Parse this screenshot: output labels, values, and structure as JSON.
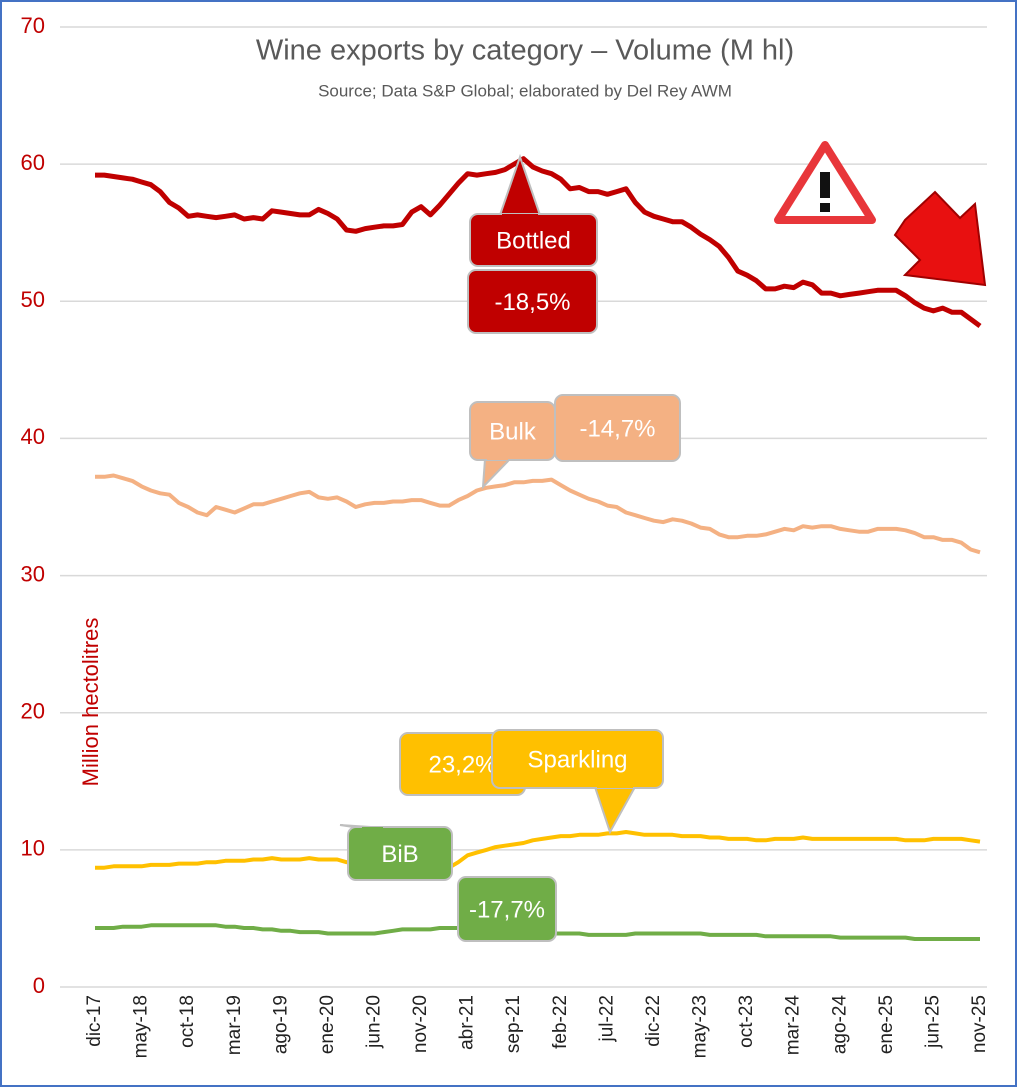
{
  "chart_data": {
    "type": "line",
    "title": "Wine exports by category – Volume (M hl)",
    "subtitle": "Source; Data S&P Global; elaborated by Del Rey AWM",
    "y_label": "Million hectolitres",
    "categories": [
      "dic-17",
      null,
      null,
      null,
      null,
      "may-18",
      null,
      null,
      null,
      null,
      "oct-18",
      null,
      null,
      null,
      null,
      "mar-19",
      null,
      null,
      null,
      null,
      "ago-19",
      null,
      null,
      null,
      null,
      "ene-20",
      null,
      null,
      null,
      null,
      "jun-20",
      null,
      null,
      null,
      null,
      "nov-20",
      null,
      null,
      null,
      null,
      "abr-21",
      null,
      null,
      null,
      null,
      "sep-21",
      null,
      null,
      null,
      null,
      "feb-22",
      null,
      null,
      null,
      null,
      "jul-22",
      null,
      null,
      null,
      null,
      "dic-22",
      null,
      null,
      null,
      null,
      "may-23",
      null,
      null,
      null,
      null,
      "oct-23",
      null,
      null,
      null,
      null,
      "mar-24",
      null,
      null,
      null,
      null,
      "ago-24",
      null,
      null,
      null,
      null,
      "ene-25",
      null,
      null,
      null,
      null,
      "jun-25",
      null,
      null,
      null,
      null,
      "nov-25"
    ],
    "series": [
      {
        "name": "Bottled",
        "color": "#c00000",
        "values": [
          59.2,
          59.2,
          59.1,
          59.0,
          58.9,
          58.7,
          58.5,
          58.0,
          57.2,
          56.8,
          56.2,
          56.3,
          56.2,
          56.1,
          56.2,
          56.3,
          56.0,
          56.1,
          56.0,
          56.6,
          56.5,
          56.4,
          56.3,
          56.3,
          56.7,
          56.4,
          56.0,
          55.2,
          55.1,
          55.3,
          55.4,
          55.5,
          55.5,
          55.6,
          56.5,
          56.9,
          56.3,
          57.0,
          57.8,
          58.6,
          59.3,
          59.2,
          59.3,
          59.4,
          59.6,
          60.0,
          60.4,
          59.8,
          59.5,
          59.3,
          58.9,
          58.2,
          58.3,
          58.0,
          58.0,
          57.8,
          58.0,
          58.2,
          57.2,
          56.5,
          56.2,
          56.0,
          55.8,
          55.8,
          55.4,
          54.9,
          54.5,
          54.0,
          53.2,
          52.2,
          51.9,
          51.5,
          50.9,
          50.9,
          51.1,
          51.0,
          51.4,
          51.2,
          50.6,
          50.6,
          50.4,
          50.5,
          50.6,
          50.7,
          50.8,
          50.8,
          50.8,
          50.4,
          49.9,
          49.5,
          49.3,
          49.5,
          49.2,
          49.2,
          48.7,
          48.2
        ]
      },
      {
        "name": "Bulk",
        "color": "#f4b183",
        "values": [
          37.2,
          37.2,
          37.3,
          37.1,
          36.9,
          36.5,
          36.2,
          36.0,
          35.9,
          35.3,
          35.0,
          34.6,
          34.4,
          35.0,
          34.8,
          34.6,
          34.9,
          35.2,
          35.2,
          35.4,
          35.6,
          35.8,
          36.0,
          36.1,
          35.7,
          35.6,
          35.7,
          35.4,
          35.0,
          35.2,
          35.3,
          35.3,
          35.4,
          35.4,
          35.5,
          35.5,
          35.3,
          35.1,
          35.1,
          35.5,
          35.8,
          36.2,
          36.4,
          36.5,
          36.6,
          36.8,
          36.8,
          36.9,
          36.9,
          37.0,
          36.6,
          36.2,
          35.9,
          35.6,
          35.4,
          35.1,
          35.0,
          34.6,
          34.4,
          34.2,
          34.0,
          33.9,
          34.1,
          34.0,
          33.8,
          33.5,
          33.4,
          33.0,
          32.8,
          32.8,
          32.9,
          32.9,
          33.0,
          33.2,
          33.4,
          33.3,
          33.6,
          33.5,
          33.6,
          33.6,
          33.4,
          33.3,
          33.2,
          33.2,
          33.4,
          33.4,
          33.4,
          33.3,
          33.1,
          32.8,
          32.8,
          32.6,
          32.6,
          32.4,
          31.9,
          31.7
        ]
      },
      {
        "name": "Sparkling",
        "color": "#ffc000",
        "values": [
          8.7,
          8.7,
          8.8,
          8.8,
          8.8,
          8.8,
          8.9,
          8.9,
          8.9,
          9.0,
          9.0,
          9.0,
          9.1,
          9.1,
          9.2,
          9.2,
          9.2,
          9.3,
          9.3,
          9.4,
          9.3,
          9.3,
          9.3,
          9.4,
          9.3,
          9.3,
          9.3,
          9.1,
          9.0,
          8.9,
          8.9,
          8.8,
          8.8,
          8.7,
          8.8,
          8.8,
          8.6,
          8.6,
          8.7,
          9.1,
          9.6,
          9.8,
          10.0,
          10.2,
          10.3,
          10.4,
          10.5,
          10.7,
          10.8,
          10.9,
          11.0,
          11.0,
          11.1,
          11.1,
          11.1,
          11.2,
          11.2,
          11.3,
          11.2,
          11.1,
          11.1,
          11.1,
          11.1,
          11.0,
          11.0,
          11.0,
          10.9,
          10.9,
          10.8,
          10.8,
          10.8,
          10.7,
          10.7,
          10.8,
          10.8,
          10.8,
          10.9,
          10.8,
          10.8,
          10.8,
          10.8,
          10.8,
          10.8,
          10.8,
          10.8,
          10.8,
          10.8,
          10.7,
          10.7,
          10.7,
          10.8,
          10.8,
          10.8,
          10.8,
          10.7,
          10.6
        ]
      },
      {
        "name": "BiB",
        "color": "#70ad47",
        "values": [
          4.3,
          4.3,
          4.3,
          4.4,
          4.4,
          4.4,
          4.5,
          4.5,
          4.5,
          4.5,
          4.5,
          4.5,
          4.5,
          4.5,
          4.4,
          4.4,
          4.3,
          4.3,
          4.2,
          4.2,
          4.1,
          4.1,
          4.0,
          4.0,
          4.0,
          3.9,
          3.9,
          3.9,
          3.9,
          3.9,
          3.9,
          4.0,
          4.1,
          4.2,
          4.2,
          4.2,
          4.2,
          4.3,
          4.3,
          4.3,
          4.3,
          4.3,
          4.2,
          4.1,
          4.0,
          4.0,
          4.0,
          4.0,
          3.9,
          3.9,
          3.9,
          3.9,
          3.9,
          3.8,
          3.8,
          3.8,
          3.8,
          3.8,
          3.9,
          3.9,
          3.9,
          3.9,
          3.9,
          3.9,
          3.9,
          3.9,
          3.8,
          3.8,
          3.8,
          3.8,
          3.8,
          3.8,
          3.7,
          3.7,
          3.7,
          3.7,
          3.7,
          3.7,
          3.7,
          3.7,
          3.6,
          3.6,
          3.6,
          3.6,
          3.6,
          3.6,
          3.6,
          3.6,
          3.5,
          3.5,
          3.5,
          3.5,
          3.5,
          3.5,
          3.5,
          3.5
        ]
      }
    ],
    "annotations": [
      {
        "text": "Bottled",
        "color": "#c00000"
      },
      {
        "text": "-18,5%",
        "color": "#c00000"
      },
      {
        "text": "Bulk",
        "color": "#f4b183"
      },
      {
        "text": "-14,7%",
        "color": "#f4b183"
      },
      {
        "text": "23,2%",
        "color": "#ffc000"
      },
      {
        "text": "Sparkling",
        "color": "#ffc000"
      },
      {
        "text": "BiB",
        "color": "#70ad47"
      },
      {
        "text": "-17,7%",
        "color": "#70ad47"
      }
    ],
    "ylim": [
      0,
      70
    ],
    "yticks": [
      0,
      10,
      20,
      30,
      40,
      50,
      60,
      70
    ],
    "grid": true
  }
}
